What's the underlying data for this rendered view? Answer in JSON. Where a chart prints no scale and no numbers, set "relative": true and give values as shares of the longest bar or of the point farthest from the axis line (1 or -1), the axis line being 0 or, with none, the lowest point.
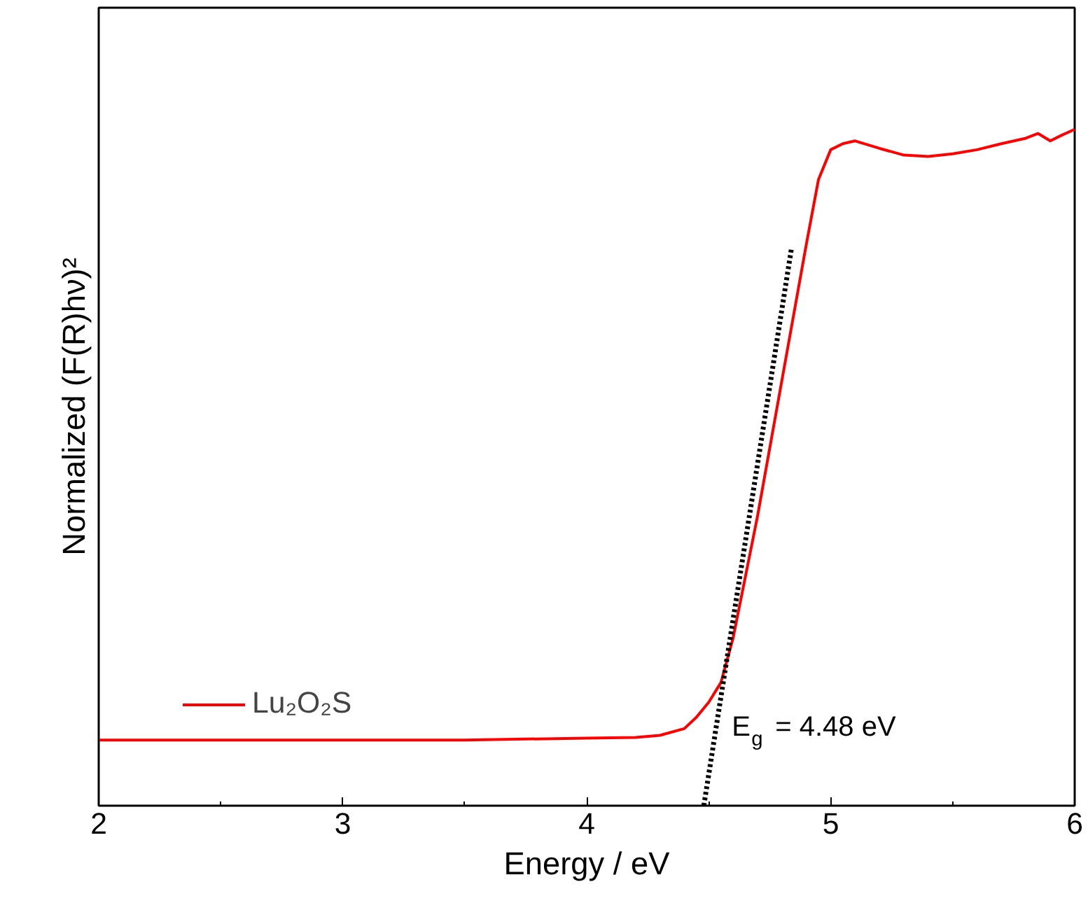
{
  "chart_data": {
    "type": "line",
    "relative": true,
    "xlabel": "Energy / eV",
    "ylabel": "Normalized (F(R)hν)²",
    "xlim": [
      2,
      6
    ],
    "xticks": [
      2,
      3,
      4,
      5,
      6
    ],
    "grid": false,
    "legend": "bottom left",
    "marker": "none",
    "annotations": [
      {
        "text": "E$_{g}$ = 4.48 eV",
        "x": 4.48,
        "y": 0
      }
    ],
    "series": [
      {
        "name": "Lu₂O₂S",
        "color": "#ff0000",
        "line_style": "solid",
        "x": [
          2,
          2.5,
          3,
          3.5,
          4,
          4.2,
          4.3,
          4.4,
          4.45,
          4.5,
          4.55,
          4.6,
          4.7,
          4.8,
          4.9,
          4.95,
          5.0,
          5.05,
          5.1,
          5.2,
          5.3,
          5.4,
          5.5,
          5.6,
          5.7,
          5.8,
          5.85,
          5.9,
          5.95,
          6.0
        ],
        "values": [
          0.097,
          0.097,
          0.097,
          0.097,
          0.1,
          0.101,
          0.104,
          0.114,
          0.131,
          0.153,
          0.182,
          0.248,
          0.428,
          0.629,
          0.83,
          0.926,
          0.97,
          0.979,
          0.983,
          0.972,
          0.962,
          0.96,
          0.964,
          0.97,
          0.979,
          0.987,
          0.994,
          0.983,
          0.992,
          1.0
        ]
      },
      {
        "type": "line",
        "color": "#000000",
        "line_style": "dotted",
        "x": [
          4.48,
          4.84
        ],
        "values": [
          0,
          0.826
        ]
      }
    ]
  }
}
